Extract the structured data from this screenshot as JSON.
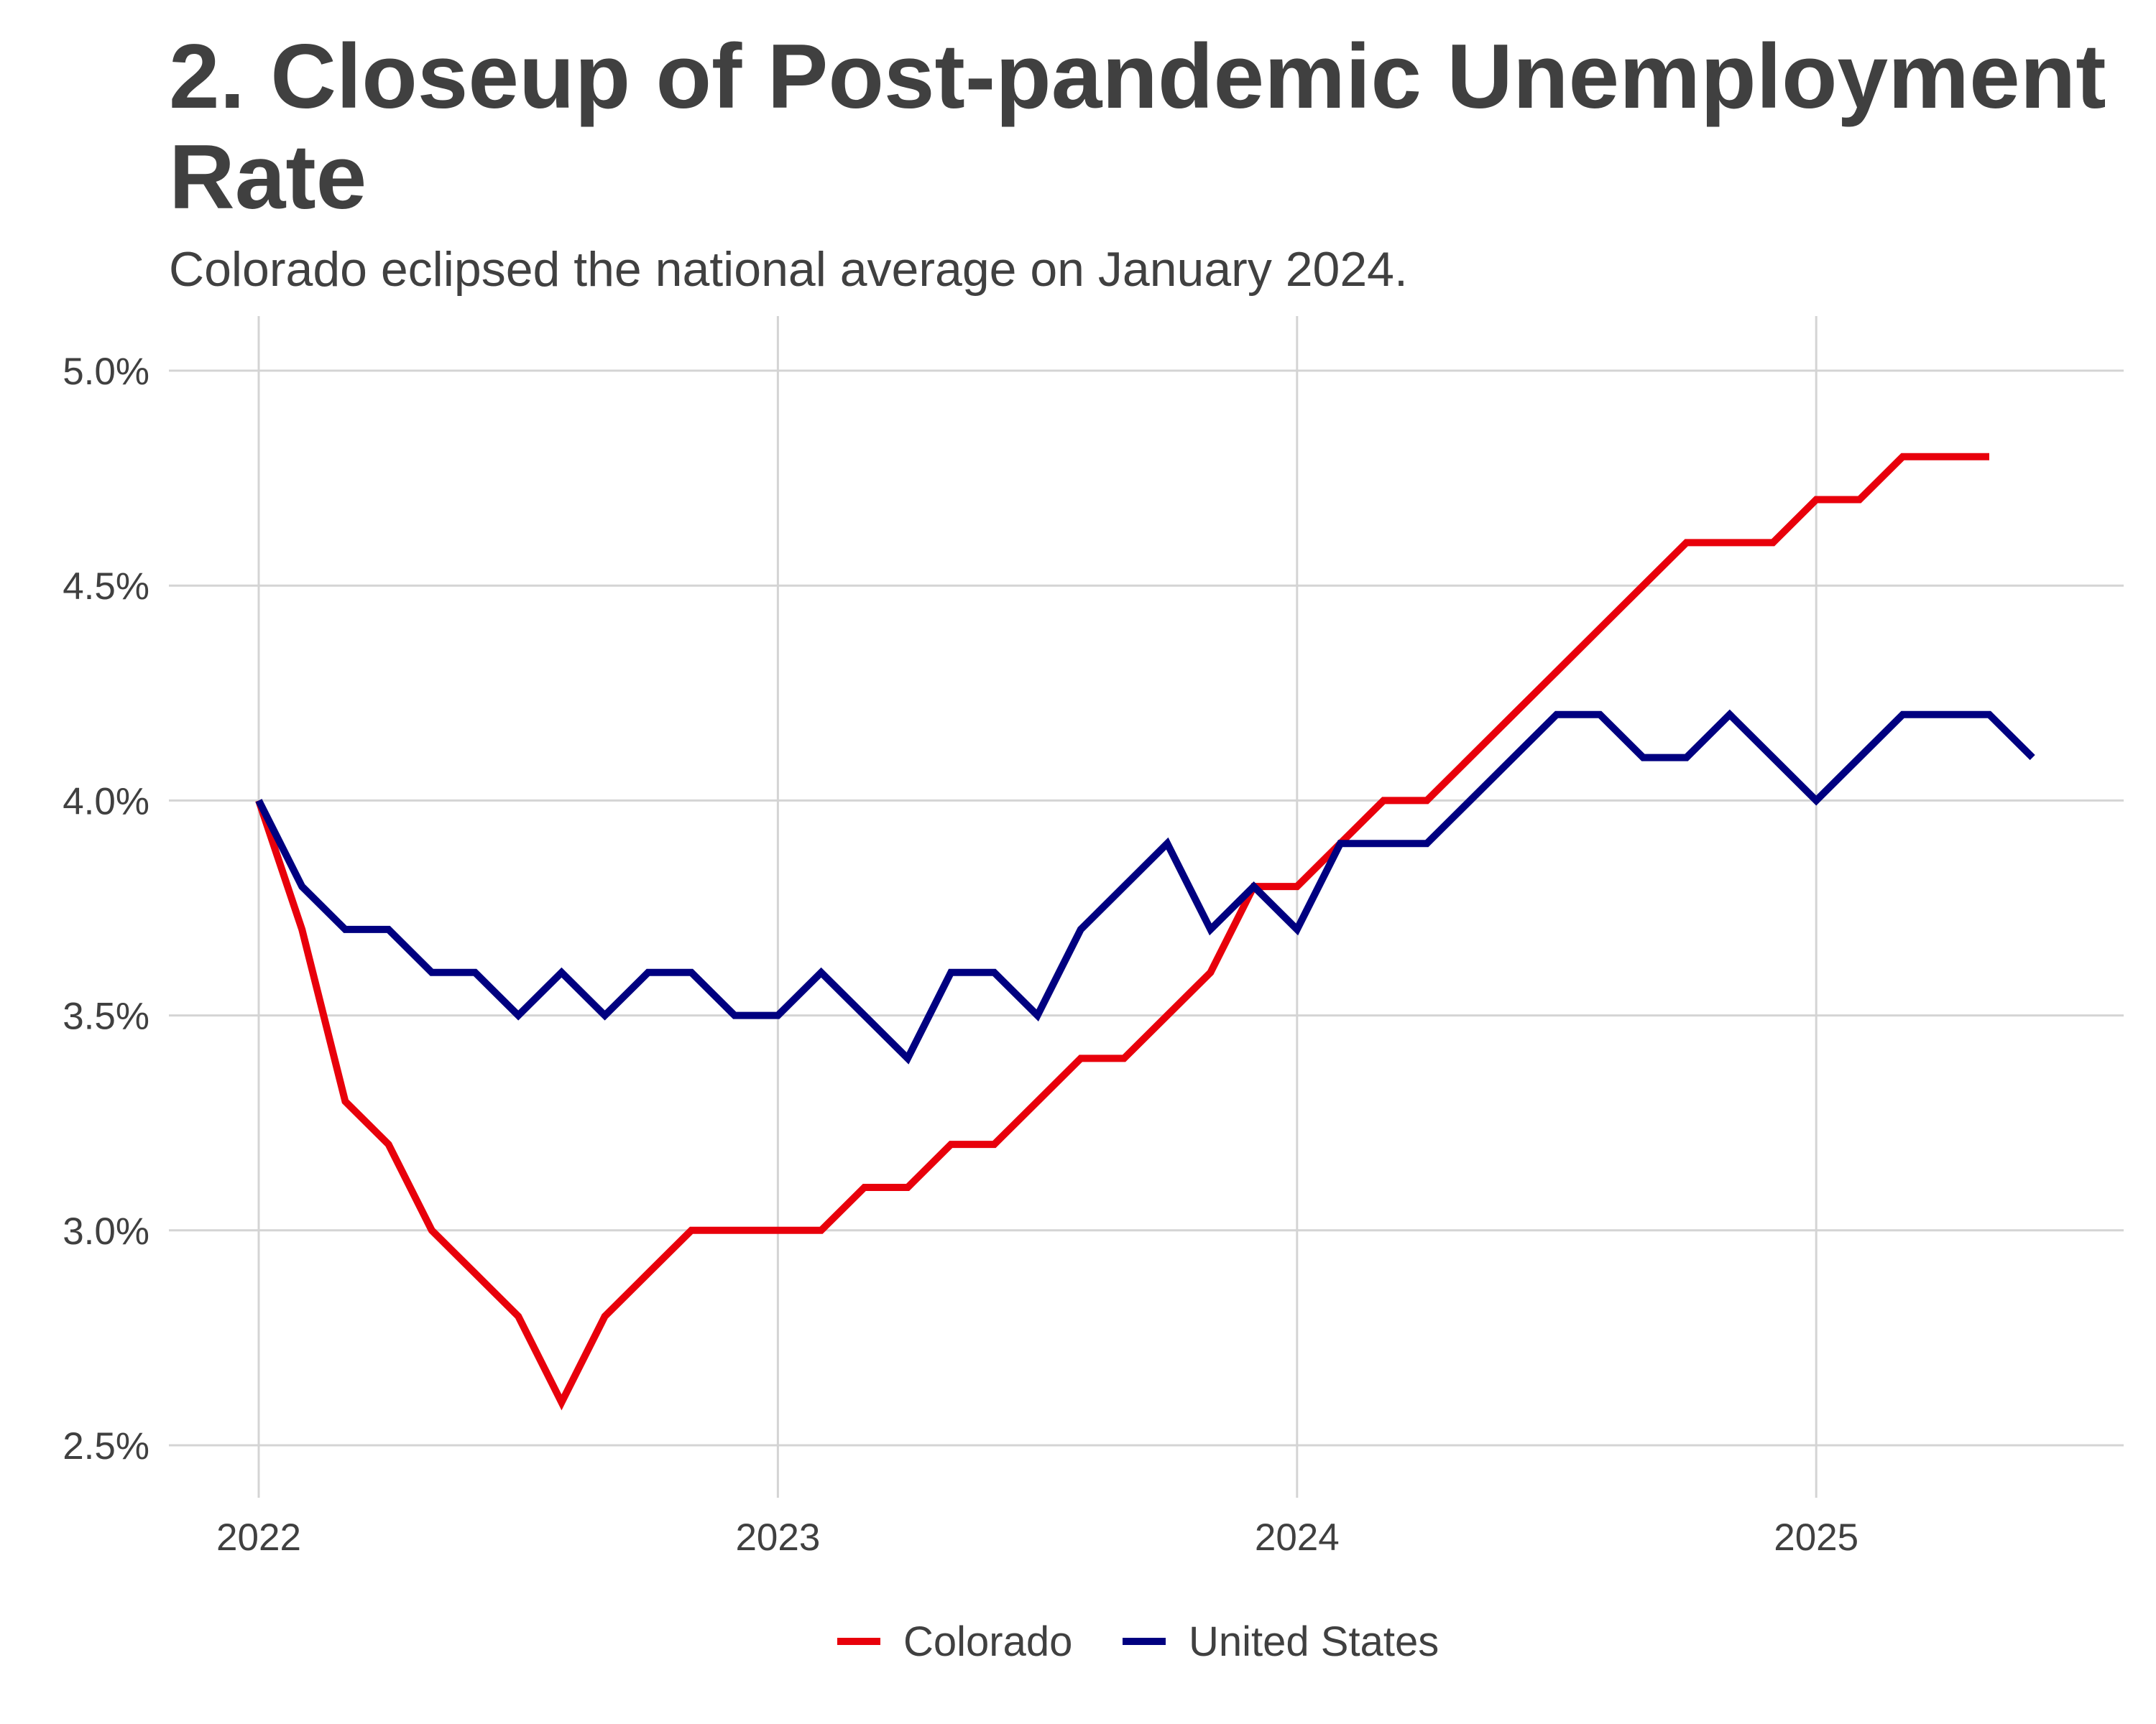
{
  "chart_data": {
    "type": "line",
    "title_line1": "2. Closeup of Post-pandemic Unemployment",
    "title_line2": "Rate",
    "subtitle": "Colorado eclipsed the national average on January 2024.",
    "xlabel": "",
    "ylabel": "",
    "x_ticks": [
      "2022",
      "2023",
      "2024",
      "2025"
    ],
    "y_ticks": [
      "2.5%",
      "3.0%",
      "3.5%",
      "4.0%",
      "4.5%",
      "5.0%"
    ],
    "y_tick_values": [
      2.5,
      3.0,
      3.5,
      4.0,
      4.5,
      5.0
    ],
    "ylim": [
      2.45,
      5.12
    ],
    "x_range": [
      "2021-10",
      "2025-09"
    ],
    "grid": true,
    "legend_position": "bottom",
    "series": [
      {
        "name": "Colorado",
        "color": "#e8000b",
        "start": "2022-01",
        "values": [
          4.0,
          3.7,
          3.3,
          3.2,
          3.0,
          2.9,
          2.8,
          2.6,
          2.8,
          2.9,
          3.0,
          3.0,
          3.0,
          3.0,
          3.1,
          3.1,
          3.2,
          3.2,
          3.3,
          3.4,
          3.4,
          3.5,
          3.6,
          3.8,
          3.8,
          3.9,
          4.0,
          4.0,
          4.1,
          4.2,
          4.3,
          4.4,
          4.5,
          4.6,
          4.6,
          4.6,
          4.7,
          4.7,
          4.8,
          4.8,
          4.8
        ]
      },
      {
        "name": "United States",
        "color": "#000080",
        "start": "2022-01",
        "values": [
          4.0,
          3.8,
          3.7,
          3.7,
          3.6,
          3.6,
          3.5,
          3.6,
          3.5,
          3.6,
          3.6,
          3.5,
          3.5,
          3.6,
          3.5,
          3.4,
          3.6,
          3.6,
          3.5,
          3.7,
          3.8,
          3.9,
          3.7,
          3.8,
          3.7,
          3.9,
          3.9,
          3.9,
          4.0,
          4.1,
          4.2,
          4.2,
          4.1,
          4.1,
          4.2,
          4.1,
          4.0,
          4.1,
          4.2,
          4.2,
          4.2,
          4.1
        ]
      }
    ]
  }
}
